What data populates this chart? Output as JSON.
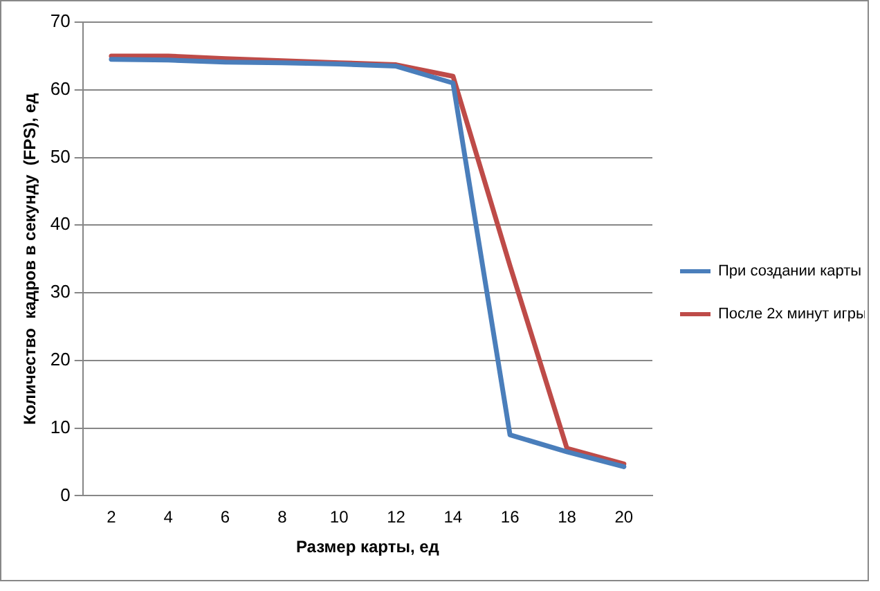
{
  "chart_data": {
    "type": "line",
    "xlabel": "Размер карты, ед",
    "ylabel": "Количество  кадров в секунду  (FPS), ед",
    "categories": [
      "2",
      "4",
      "6",
      "8",
      "10",
      "12",
      "14",
      "16",
      "18",
      "20"
    ],
    "series": [
      {
        "name": "При создании карты",
        "color": "#4a7ebb",
        "values": [
          64.5,
          64.4,
          64.1,
          64,
          63.8,
          63.5,
          61,
          9,
          6.5,
          4.3
        ]
      },
      {
        "name": "После 2х минут игры",
        "color": "#be4b48",
        "values": [
          65,
          65,
          64.6,
          64.3,
          64,
          63.7,
          62,
          34,
          7,
          4.7
        ]
      }
    ],
    "ylim": [
      0,
      70
    ],
    "yticks": [
      0,
      10,
      20,
      30,
      40,
      50,
      60,
      70
    ],
    "grid": "y",
    "legend": "right",
    "marker": "none"
  }
}
